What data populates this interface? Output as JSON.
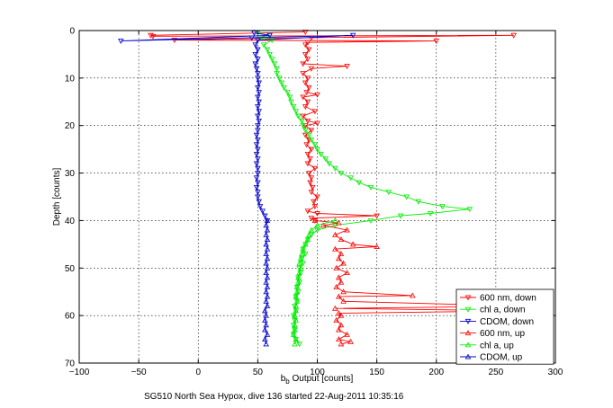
{
  "chart_data": {
    "type": "line",
    "title": "",
    "xlabel_main": "b",
    "xlabel_sub": "b",
    "xlabel_rest": " Output [counts]",
    "ylabel": "Depth [counts]",
    "caption": "SG510 North Sea Hypox, dive 136 started 22-Aug-2011 10:35:16",
    "xlim": [
      -100,
      300
    ],
    "ylim": [
      0,
      70
    ],
    "y_reversed": true,
    "grid": true,
    "legend_position": "bottom-right",
    "xticks": [
      -100,
      -50,
      0,
      50,
      100,
      150,
      200,
      250,
      300
    ],
    "yticks": [
      0,
      10,
      20,
      30,
      40,
      50,
      60,
      70
    ],
    "series": [
      {
        "name": "600 nm, down",
        "color": "#ff0000",
        "marker": "triangle-down",
        "points": [
          [
            90,
            0.3
          ],
          [
            -40,
            1
          ],
          [
            -38,
            1.2
          ],
          [
            265,
            1
          ],
          [
            95,
            1.5
          ],
          [
            -20,
            2
          ],
          [
            200,
            2.2
          ],
          [
            92,
            2.5
          ],
          [
            90,
            3
          ],
          [
            93,
            4
          ],
          [
            90,
            5
          ],
          [
            92,
            6
          ],
          [
            88,
            7
          ],
          [
            125,
            7.5
          ],
          [
            95,
            8
          ],
          [
            88,
            9
          ],
          [
            92,
            10
          ],
          [
            90,
            11
          ],
          [
            93,
            12
          ],
          [
            91,
            13
          ],
          [
            100,
            13.5
          ],
          [
            88,
            14
          ],
          [
            92,
            15
          ],
          [
            90,
            16
          ],
          [
            98,
            17
          ],
          [
            88,
            18
          ],
          [
            92,
            19
          ],
          [
            100,
            19.5
          ],
          [
            90,
            20
          ],
          [
            95,
            21
          ],
          [
            90,
            22
          ],
          [
            93,
            23
          ],
          [
            91,
            24
          ],
          [
            95,
            25
          ],
          [
            92,
            26
          ],
          [
            94,
            27
          ],
          [
            92,
            28
          ],
          [
            98,
            29
          ],
          [
            93,
            30
          ],
          [
            95,
            31
          ],
          [
            94,
            32
          ],
          [
            96,
            33
          ],
          [
            95,
            34
          ],
          [
            100,
            35
          ],
          [
            97,
            36
          ],
          [
            98,
            37
          ],
          [
            92,
            38
          ],
          [
            100,
            38.5
          ],
          [
            150,
            39
          ],
          [
            95,
            39.5
          ],
          [
            98,
            40
          ]
        ]
      },
      {
        "name": "chl a, down",
        "color": "#00ee00",
        "marker": "triangle-down",
        "points": [
          [
            50,
            0.5
          ],
          [
            60,
            1
          ],
          [
            52,
            1.5
          ],
          [
            62,
            2
          ],
          [
            55,
            3
          ],
          [
            58,
            4
          ],
          [
            60,
            5
          ],
          [
            62,
            6
          ],
          [
            64,
            7
          ],
          [
            66,
            8
          ],
          [
            66,
            9
          ],
          [
            68,
            10
          ],
          [
            70,
            11
          ],
          [
            72,
            12
          ],
          [
            75,
            13
          ],
          [
            77,
            14
          ],
          [
            78,
            15
          ],
          [
            80,
            16
          ],
          [
            82,
            17
          ],
          [
            84,
            18
          ],
          [
            87,
            19
          ],
          [
            88,
            20
          ],
          [
            90,
            21
          ],
          [
            93,
            22
          ],
          [
            95,
            23
          ],
          [
            98,
            24
          ],
          [
            100,
            25
          ],
          [
            103,
            26
          ],
          [
            107,
            27
          ],
          [
            110,
            28
          ],
          [
            115,
            29
          ],
          [
            120,
            30
          ],
          [
            128,
            31
          ],
          [
            135,
            32
          ],
          [
            145,
            33
          ],
          [
            160,
            34
          ],
          [
            175,
            35
          ],
          [
            185,
            36
          ],
          [
            205,
            37
          ],
          [
            228,
            37.6
          ],
          [
            195,
            38.5
          ],
          [
            170,
            39
          ],
          [
            145,
            40
          ],
          [
            115,
            41
          ],
          [
            100,
            42
          ],
          [
            95,
            43
          ],
          [
            92,
            44
          ],
          [
            90,
            45
          ],
          [
            88,
            46
          ],
          [
            90,
            47
          ],
          [
            87,
            48
          ],
          [
            88,
            49
          ],
          [
            85,
            50
          ],
          [
            86,
            51
          ],
          [
            84,
            52
          ],
          [
            85,
            53
          ],
          [
            83,
            54
          ],
          [
            84,
            55
          ],
          [
            82,
            56
          ],
          [
            83,
            57
          ],
          [
            81,
            58
          ],
          [
            82,
            59
          ],
          [
            80,
            60
          ],
          [
            81,
            61
          ],
          [
            80,
            62
          ],
          [
            81,
            63
          ],
          [
            80,
            64
          ],
          [
            82,
            65
          ],
          [
            85,
            66
          ]
        ]
      },
      {
        "name": "CDOM, down",
        "color": "#0000cc",
        "marker": "triangle-down",
        "points": [
          [
            47,
            0.5
          ],
          [
            60,
            1
          ],
          [
            -65,
            2.2
          ],
          [
            45,
            1.5
          ],
          [
            130,
            1
          ],
          [
            50,
            2
          ],
          [
            48,
            3
          ],
          [
            50,
            4
          ],
          [
            48,
            5
          ],
          [
            50,
            6
          ],
          [
            48,
            7
          ],
          [
            49,
            8
          ],
          [
            50,
            9
          ],
          [
            50,
            10
          ],
          [
            51,
            11
          ],
          [
            50,
            12
          ],
          [
            51,
            13
          ],
          [
            50,
            14
          ],
          [
            51,
            15
          ],
          [
            50,
            16
          ],
          [
            51,
            17
          ],
          [
            50,
            18
          ],
          [
            51,
            19
          ],
          [
            50,
            20
          ],
          [
            50,
            21
          ],
          [
            49,
            22
          ],
          [
            50,
            23
          ],
          [
            49,
            24
          ],
          [
            50,
            25
          ],
          [
            49,
            26
          ],
          [
            50,
            27
          ],
          [
            49,
            28
          ],
          [
            50,
            29
          ],
          [
            50,
            30
          ],
          [
            49,
            31
          ],
          [
            50,
            32
          ],
          [
            49,
            33
          ],
          [
            50,
            34
          ],
          [
            50,
            35
          ],
          [
            51,
            36
          ],
          [
            52,
            37
          ],
          [
            54,
            38
          ],
          [
            56,
            39
          ],
          [
            58,
            40
          ]
        ]
      },
      {
        "name": "600 nm, up",
        "color": "#ff0000",
        "marker": "triangle-up",
        "points": [
          [
            98,
            40
          ],
          [
            118,
            40.5
          ],
          [
            105,
            41
          ],
          [
            125,
            42
          ],
          [
            115,
            43
          ],
          [
            120,
            44
          ],
          [
            130,
            45
          ],
          [
            150,
            45.5
          ],
          [
            115,
            46
          ],
          [
            120,
            47
          ],
          [
            118,
            48
          ],
          [
            122,
            49
          ],
          [
            116,
            50
          ],
          [
            125,
            51
          ],
          [
            118,
            52
          ],
          [
            120,
            53
          ],
          [
            116,
            54
          ],
          [
            122,
            55
          ],
          [
            180,
            55.8
          ],
          [
            118,
            56
          ],
          [
            122,
            57
          ],
          [
            275,
            58
          ],
          [
            115,
            58.5
          ],
          [
            275,
            59
          ],
          [
            118,
            59.5
          ],
          [
            120,
            60
          ],
          [
            116,
            61
          ],
          [
            120,
            62
          ],
          [
            118,
            63
          ],
          [
            125,
            64
          ],
          [
            118,
            65
          ],
          [
            128,
            65.5
          ],
          [
            120,
            66
          ]
        ]
      },
      {
        "name": "chl a, up",
        "color": "#00ee00",
        "marker": "triangle-up",
        "points": [
          [
            115,
            40
          ],
          [
            100,
            41
          ],
          [
            95,
            42
          ],
          [
            93,
            43
          ],
          [
            92,
            44
          ],
          [
            90,
            45
          ],
          [
            88,
            46
          ],
          [
            87,
            47
          ],
          [
            86,
            48
          ],
          [
            85,
            49
          ],
          [
            86,
            50
          ],
          [
            85,
            51
          ],
          [
            84,
            52
          ],
          [
            84,
            53
          ],
          [
            83,
            54
          ],
          [
            83,
            55
          ],
          [
            82,
            56
          ],
          [
            83,
            57
          ],
          [
            82,
            58
          ],
          [
            82,
            59
          ],
          [
            81,
            60
          ],
          [
            82,
            61
          ],
          [
            81,
            62
          ],
          [
            81,
            63
          ],
          [
            80,
            64
          ],
          [
            82,
            65
          ],
          [
            81,
            66
          ]
        ]
      },
      {
        "name": "CDOM, up",
        "color": "#0000cc",
        "marker": "triangle-up",
        "points": [
          [
            58,
            40
          ],
          [
            57,
            41
          ],
          [
            58,
            42
          ],
          [
            57,
            43
          ],
          [
            58,
            44
          ],
          [
            57,
            45
          ],
          [
            58,
            46
          ],
          [
            57,
            47
          ],
          [
            58,
            48
          ],
          [
            57,
            49
          ],
          [
            58,
            50
          ],
          [
            57,
            51
          ],
          [
            58,
            52
          ],
          [
            57,
            53
          ],
          [
            58,
            54
          ],
          [
            57,
            55
          ],
          [
            58,
            56
          ],
          [
            57,
            57
          ],
          [
            58,
            58
          ],
          [
            56,
            59
          ],
          [
            57,
            60
          ],
          [
            56,
            61
          ],
          [
            57,
            62
          ],
          [
            56,
            63
          ],
          [
            58,
            64
          ],
          [
            56,
            65
          ],
          [
            57,
            66
          ]
        ]
      }
    ]
  }
}
